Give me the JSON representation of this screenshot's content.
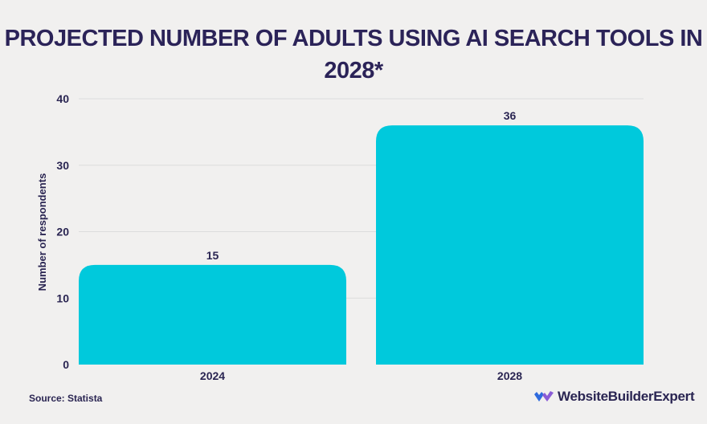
{
  "title": "PROJECTED NUMBER OF ADULTS USING AI SEARCH TOOLS IN 2028*",
  "source": "Source: Statista",
  "logo_text": "WebsiteBuilderExpert",
  "colors": {
    "bar": "#00c9dc",
    "text": "#2a2552",
    "grid": "#dcdcdc",
    "background": "#f1f0ef",
    "logo_blue": "#2f6bde",
    "logo_purple": "#8a5cd6"
  },
  "chart_data": {
    "type": "bar",
    "title": "PROJECTED NUMBER OF ADULTS USING AI SEARCH TOOLS IN 2028*",
    "categories": [
      "2024",
      "2028"
    ],
    "values": [
      15,
      36
    ],
    "data_labels": [
      "15",
      "36"
    ],
    "xlabel": "",
    "ylabel": "Number of respondents",
    "ylim": [
      0,
      40
    ],
    "yticks": [
      0,
      10,
      20,
      30,
      40
    ],
    "grid": true,
    "legend": "none"
  }
}
